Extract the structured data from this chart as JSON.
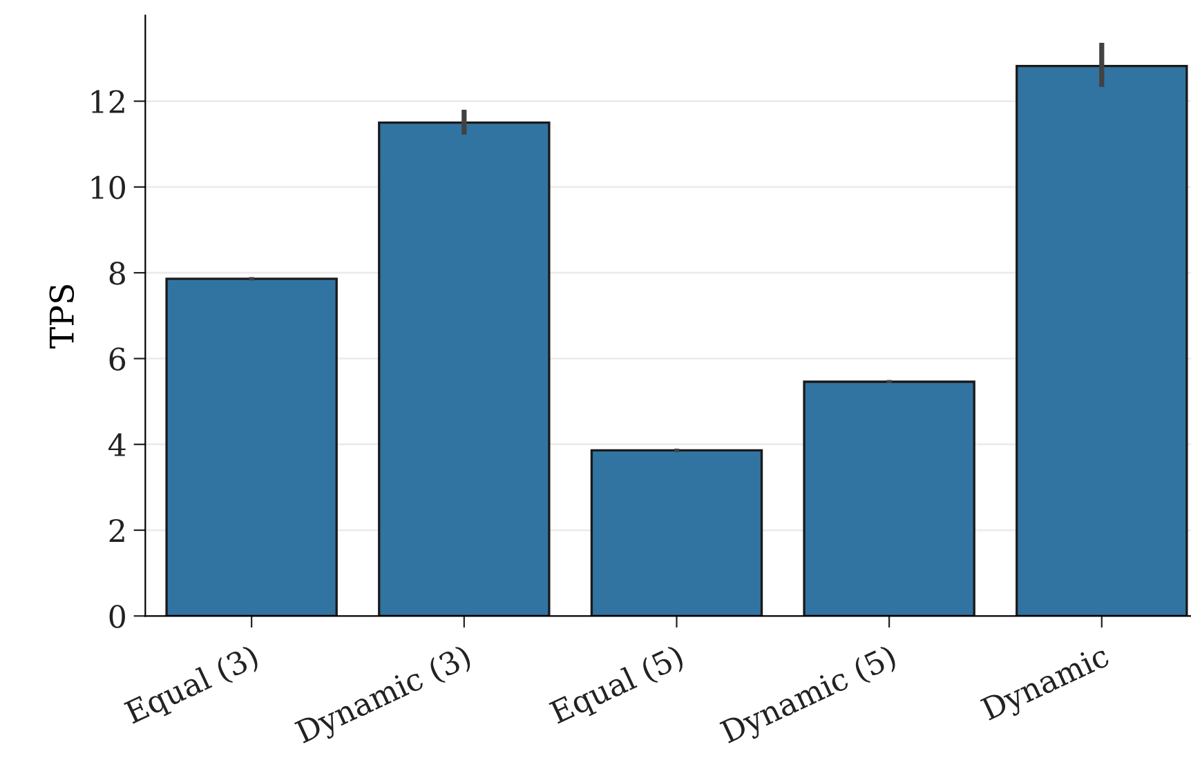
{
  "chart_data": {
    "type": "bar",
    "ylabel": "TPS",
    "categories": [
      "Equal (3)",
      "Dynamic (3)",
      "Equal (5)",
      "Dynamic (5)",
      "Dynamic"
    ],
    "values": [
      7.86,
      11.5,
      3.86,
      5.46,
      12.82
    ],
    "errors": [
      [
        7.82,
        7.9
      ],
      [
        11.22,
        11.8
      ],
      [
        3.82,
        3.9
      ],
      [
        5.43,
        5.5
      ],
      [
        12.33,
        13.36
      ]
    ],
    "color": "#3274a1",
    "ylim": [
      0,
      14
    ],
    "yticks": [
      0,
      2,
      4,
      6,
      8,
      10,
      12
    ],
    "grid": "y"
  }
}
